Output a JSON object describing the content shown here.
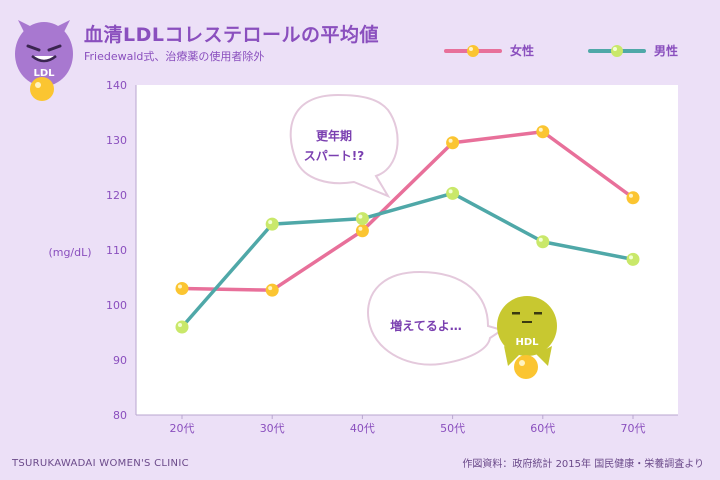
{
  "header": {
    "title": "血清LDLコレステロールの平均値",
    "subtitle": "Friedewald式、治療薬の使用者除外"
  },
  "mascots": {
    "ldl_label": "LDL",
    "hdl_label": "HDL"
  },
  "bubbles": {
    "top_line1": "更年期",
    "top_line2": "スパート!?",
    "bottom": "増えてるよ…"
  },
  "footer": {
    "left": "TSURUKAWADAI WOMEN'S CLINIC",
    "right": "作図資料：政府統計 2015年 国民健康・栄養調査より"
  },
  "colors": {
    "female": "#e8709a",
    "male": "#4fa8a8",
    "female_marker": "#fbc531",
    "male_marker": "#c9e86a",
    "ldl_mascot": "#a878d0",
    "hdl_mascot": "#c8c830"
  },
  "chart_data": {
    "type": "line",
    "title": "血清LDLコレステロールの平均値",
    "subtitle": "Friedewald式、治療薬の使用者除外",
    "xlabel": "",
    "ylabel": "(mg/dL)",
    "categories": [
      "20代",
      "30代",
      "40代",
      "50代",
      "60代",
      "70代"
    ],
    "ylim": [
      80,
      140
    ],
    "yticks": [
      80,
      90,
      100,
      110,
      120,
      130,
      140
    ],
    "grid": false,
    "legend_position": "top-right",
    "series": [
      {
        "name": "女性",
        "values": [
          103,
          102.7,
          113.5,
          129.5,
          131.5,
          119.5
        ]
      },
      {
        "name": "男性",
        "values": [
          96,
          114.7,
          115.7,
          120.3,
          111.5,
          108.3
        ]
      }
    ]
  }
}
